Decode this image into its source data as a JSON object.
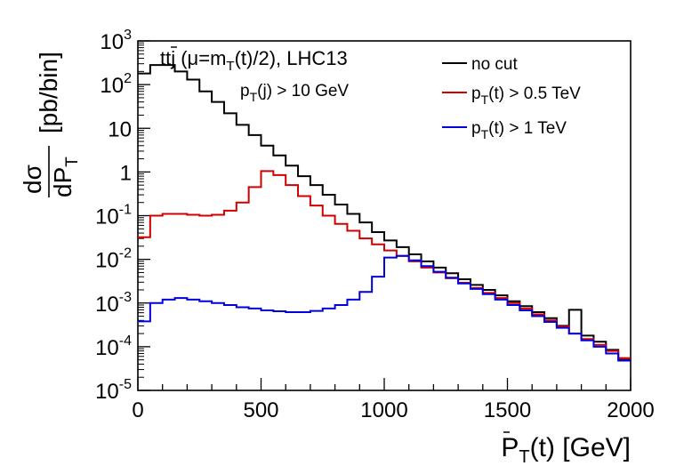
{
  "chart_data": {
    "type": "line",
    "step": true,
    "title": "",
    "annotations": [
      "tt̄j (μ=m_T(t)/2), LHC13",
      "p_T(j) > 10 GeV"
    ],
    "xlabel": "P_T(t̄) [GeV]",
    "ylabel": "dσ/dP_T [pb/bin]",
    "xlim": [
      0,
      2000
    ],
    "ylim": [
      1e-05,
      1000
    ],
    "yscale": "log",
    "grid": false,
    "legend_position": "top-right",
    "x_ticks": [
      "0",
      "500",
      "1000",
      "1500",
      "2000"
    ],
    "y_ticks": [
      "10^-5",
      "10^-4",
      "10^-3",
      "10^-2",
      "10^-1",
      "1",
      "10",
      "10^2",
      "10^3"
    ],
    "bin_width": 50,
    "x": [
      0,
      50,
      100,
      150,
      200,
      250,
      300,
      350,
      400,
      450,
      500,
      550,
      600,
      650,
      700,
      750,
      800,
      850,
      900,
      950,
      1000,
      1050,
      1100,
      1150,
      1200,
      1250,
      1300,
      1350,
      1400,
      1450,
      1500,
      1550,
      1600,
      1650,
      1700,
      1750,
      1800,
      1850,
      1900,
      1950
    ],
    "series": [
      {
        "name": "no cut",
        "color": "#000000",
        "values": [
          180,
          280,
          280,
          200,
          130,
          70,
          40,
          22,
          12,
          7,
          4,
          2.4,
          1.4,
          0.8,
          0.5,
          0.3,
          0.18,
          0.11,
          0.07,
          0.042,
          0.027,
          0.019,
          0.013,
          0.009,
          0.0065,
          0.0048,
          0.0035,
          0.0026,
          0.002,
          0.0015,
          0.0011,
          0.00085,
          0.00062,
          0.00045,
          0.0003,
          0.0007,
          0.00018,
          0.00013,
          8.5e-05,
          5e-05
        ]
      },
      {
        "name": "p_T(t) > 0.5 TeV",
        "color": "#d00000",
        "values": [
          0.032,
          0.1,
          0.11,
          0.11,
          0.105,
          0.1,
          0.105,
          0.13,
          0.2,
          0.45,
          1.05,
          0.85,
          0.5,
          0.28,
          0.17,
          0.1,
          0.065,
          0.045,
          0.03,
          0.022,
          0.016,
          0.012,
          0.009,
          0.0065,
          0.005,
          0.0037,
          0.0029,
          0.0022,
          0.0017,
          0.0013,
          0.001,
          0.00075,
          0.00055,
          0.0004,
          0.00029,
          0.0002,
          0.00015,
          0.00011,
          8e-05,
          5.5e-05
        ]
      },
      {
        "name": "p_T(t) > 1 TeV",
        "color": "#0000dd",
        "values": [
          0.00038,
          0.001,
          0.0012,
          0.0013,
          0.0012,
          0.0011,
          0.001,
          0.0009,
          0.0008,
          0.00075,
          0.00068,
          0.00065,
          0.00062,
          0.00062,
          0.00066,
          0.00075,
          0.0009,
          0.0012,
          0.0018,
          0.004,
          0.011,
          0.012,
          0.0095,
          0.007,
          0.0052,
          0.0038,
          0.0028,
          0.0021,
          0.0016,
          0.0012,
          0.0009,
          0.00068,
          0.0005,
          0.00037,
          0.00027,
          0.0002,
          0.00014,
          0.0001,
          7e-05,
          4.8e-05
        ]
      }
    ]
  }
}
